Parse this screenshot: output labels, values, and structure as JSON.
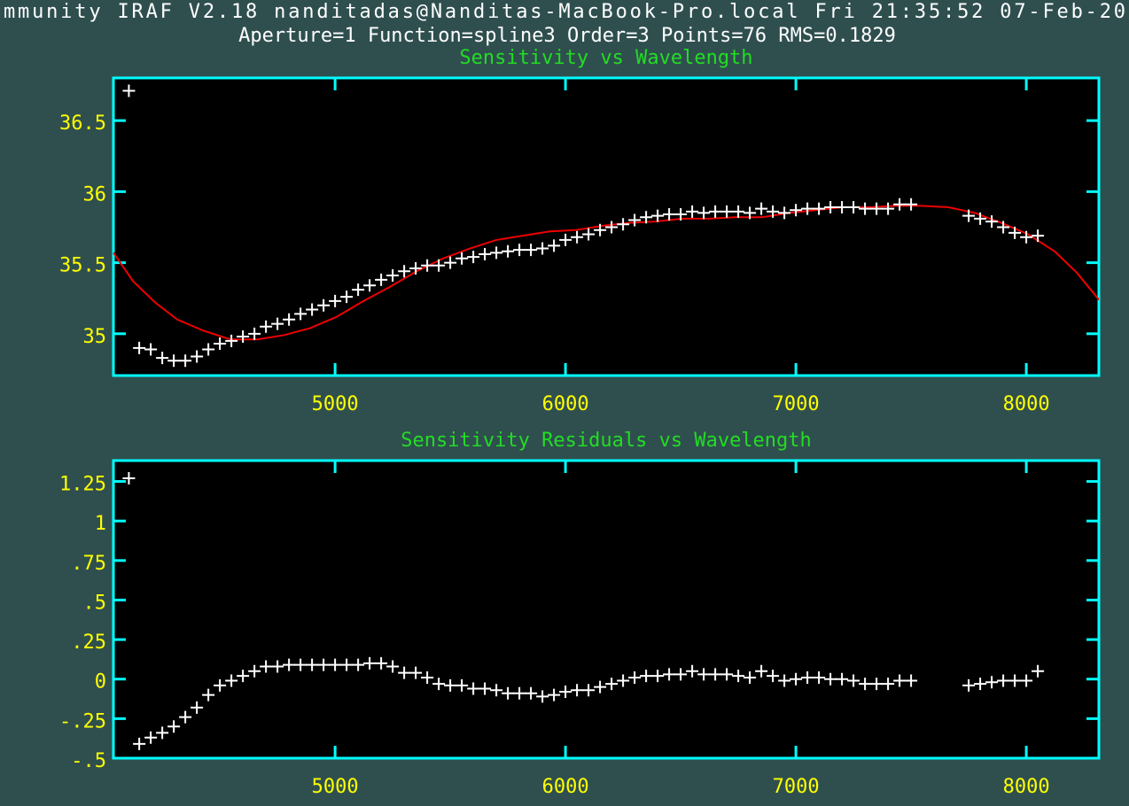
{
  "header": {
    "banner": "mmunity IRAF V2.18 nanditadas@Nanditas-MacBook-Pro.local Fri 21:35:52 07-Feb-20",
    "subtitle": "Aperture=1  Function=spline3  Order=3  Points=76  RMS=0.1829"
  },
  "chart_data": [
    {
      "type": "scatter",
      "title": "Sensitivity vs Wavelength",
      "color": "#ffffff",
      "x": [
        4105,
        4150,
        4200,
        4250,
        4300,
        4350,
        4400,
        4450,
        4500,
        4550,
        4600,
        4650,
        4700,
        4750,
        4800,
        4850,
        4900,
        4950,
        5000,
        5050,
        5100,
        5150,
        5200,
        5250,
        5300,
        5350,
        5400,
        5450,
        5500,
        5550,
        5600,
        5650,
        5700,
        5750,
        5800,
        5850,
        5900,
        5950,
        6000,
        6050,
        6100,
        6150,
        6200,
        6250,
        6300,
        6350,
        6400,
        6450,
        6500,
        6550,
        6600,
        6650,
        6700,
        6750,
        6800,
        6850,
        6900,
        6950,
        7000,
        7050,
        7100,
        7150,
        7200,
        7250,
        7300,
        7350,
        7400,
        7450,
        7500,
        7750,
        7800,
        7850,
        7900,
        7950,
        8000,
        8050
      ],
      "values": [
        36.71,
        34.9,
        34.89,
        34.83,
        34.81,
        34.81,
        34.84,
        34.89,
        34.93,
        34.95,
        34.98,
        35.0,
        35.05,
        35.07,
        35.1,
        35.14,
        35.17,
        35.2,
        35.23,
        35.26,
        35.31,
        35.34,
        35.38,
        35.41,
        35.44,
        35.46,
        35.48,
        35.48,
        35.5,
        35.53,
        35.54,
        35.56,
        35.57,
        35.58,
        35.59,
        35.59,
        35.6,
        35.62,
        35.66,
        35.68,
        35.7,
        35.73,
        35.75,
        35.77,
        35.8,
        35.82,
        35.83,
        35.84,
        35.84,
        35.86,
        35.85,
        35.86,
        35.86,
        35.86,
        35.85,
        35.88,
        35.86,
        35.85,
        35.87,
        35.88,
        35.88,
        35.89,
        35.89,
        35.89,
        35.88,
        35.88,
        35.88,
        35.91,
        35.91,
        35.83,
        35.81,
        35.79,
        35.75,
        35.71,
        35.68,
        35.69
      ],
      "fit": {
        "type": "line",
        "color": "#ee0000",
        "x": [
          4038,
          4123,
          4219,
          4315,
          4431,
          4546,
          4662,
          4777,
          4892,
          5008,
          5123,
          5238,
          5354,
          5469,
          5585,
          5700,
          5815,
          5931,
          6046,
          6162,
          6277,
          6392,
          6508,
          6623,
          6738,
          6854,
          6969,
          7085,
          7200,
          7315,
          7431,
          7546,
          7662,
          7777,
          7892,
          8008,
          8123,
          8219,
          8315
        ],
        "values": [
          35.57,
          35.37,
          35.22,
          35.1,
          35.02,
          34.96,
          34.96,
          34.99,
          35.04,
          35.12,
          35.23,
          35.33,
          35.44,
          35.53,
          35.6,
          35.66,
          35.69,
          35.72,
          35.73,
          35.76,
          35.78,
          35.79,
          35.81,
          35.81,
          35.82,
          35.82,
          35.85,
          35.87,
          35.89,
          35.89,
          35.9,
          35.9,
          35.89,
          35.85,
          35.78,
          35.7,
          35.58,
          35.43,
          35.24
        ]
      },
      "xlim": [
        4038,
        8315
      ],
      "ylim": [
        34.706,
        36.8
      ],
      "xticks": [
        5000,
        6000,
        7000,
        8000
      ],
      "yticks": [
        35,
        35.5,
        36,
        36.5
      ]
    },
    {
      "type": "scatter",
      "title": "Sensitivity Residuals vs Wavelength",
      "color": "#ffffff",
      "x": [
        4105,
        4150,
        4200,
        4250,
        4300,
        4350,
        4400,
        4450,
        4500,
        4550,
        4600,
        4650,
        4700,
        4750,
        4800,
        4850,
        4900,
        4950,
        5000,
        5050,
        5100,
        5150,
        5200,
        5250,
        5300,
        5350,
        5400,
        5450,
        5500,
        5550,
        5600,
        5650,
        5700,
        5750,
        5800,
        5850,
        5900,
        5950,
        6000,
        6050,
        6100,
        6150,
        6200,
        6250,
        6300,
        6350,
        6400,
        6450,
        6500,
        6550,
        6600,
        6650,
        6700,
        6750,
        6800,
        6850,
        6900,
        6950,
        7000,
        7050,
        7100,
        7150,
        7200,
        7250,
        7300,
        7350,
        7400,
        7450,
        7500,
        7750,
        7800,
        7850,
        7900,
        7950,
        8000,
        8050
      ],
      "values": [
        1.27,
        -0.41,
        -0.37,
        -0.34,
        -0.3,
        -0.24,
        -0.18,
        -0.1,
        -0.04,
        -0.01,
        0.02,
        0.05,
        0.08,
        0.08,
        0.09,
        0.09,
        0.09,
        0.09,
        0.09,
        0.09,
        0.09,
        0.1,
        0.1,
        0.08,
        0.04,
        0.04,
        0.01,
        -0.03,
        -0.04,
        -0.04,
        -0.06,
        -0.06,
        -0.07,
        -0.09,
        -0.09,
        -0.09,
        -0.11,
        -0.1,
        -0.08,
        -0.07,
        -0.07,
        -0.05,
        -0.03,
        -0.01,
        0.01,
        0.02,
        0.02,
        0.03,
        0.03,
        0.05,
        0.03,
        0.03,
        0.03,
        0.02,
        0.01,
        0.05,
        0.02,
        -0.01,
        0,
        0.01,
        0.01,
        0,
        0,
        -0.01,
        -0.03,
        -0.03,
        -0.03,
        -0.01,
        -0.01,
        -0.04,
        -0.03,
        -0.02,
        -0.01,
        -0.01,
        -0.01,
        0.05
      ],
      "xlim": [
        4038,
        8315
      ],
      "ylim": [
        -0.5,
        1.382
      ],
      "xticks": [
        5000,
        6000,
        7000,
        8000
      ],
      "yticks": [
        {
          "value": -0.5,
          "label": "-.5"
        },
        {
          "value": -0.25,
          "label": "-.25"
        },
        0,
        {
          "value": 0.25,
          "label": ".25"
        },
        {
          "value": 0.5,
          "label": ".5"
        },
        {
          "value": 0.75,
          "label": ".75"
        },
        1,
        1.25
      ]
    }
  ]
}
